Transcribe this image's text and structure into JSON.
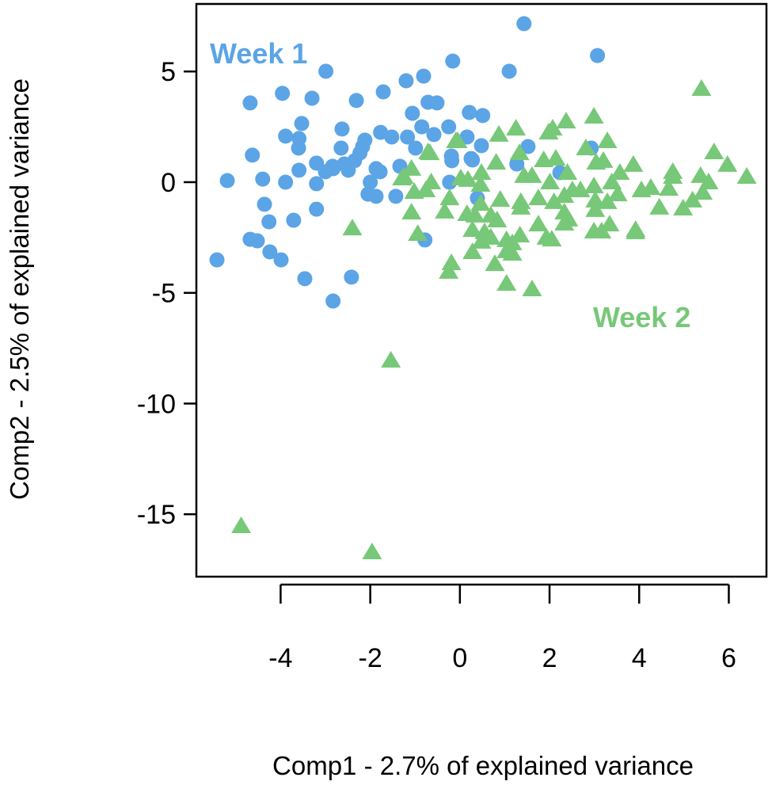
{
  "chart_data": {
    "type": "scatter",
    "title": "",
    "xlabel": "Comp1 - 2.7% of explained variance",
    "ylabel": "Comp2 - 2.5% of explained variance",
    "xlim": [
      -5.88,
      6.84
    ],
    "ylim": [
      -17.82,
      8.05
    ],
    "xticks": [
      -4,
      -2,
      0,
      2,
      4,
      6
    ],
    "yticks": [
      5,
      0,
      -5,
      -10,
      -15
    ],
    "xtick_labels": [
      "-4",
      "-2",
      "0",
      "2",
      "4",
      "6"
    ],
    "ytick_labels": [
      "5",
      "0",
      "-5",
      "-10",
      "-15"
    ],
    "grid": false,
    "legend": "none",
    "annotations": [
      {
        "text": "Week 1",
        "x": -4.49,
        "y": 5.83,
        "color": "#5ba4e6"
      },
      {
        "text": "Week 2",
        "x": 4.06,
        "y": -6.08,
        "color": "#77c878"
      }
    ],
    "series": [
      {
        "name": "Week 1",
        "marker": "circle",
        "color": "#5ba4e6",
        "points": [
          [
            1.43,
            7.16
          ],
          [
            3.07,
            5.72
          ],
          [
            -0.16,
            5.47
          ],
          [
            1.1,
            5.01
          ],
          [
            -2.99,
            5.01
          ],
          [
            -1.2,
            4.58
          ],
          [
            -0.81,
            4.79
          ],
          [
            -1.71,
            4.08
          ],
          [
            -2.31,
            3.69
          ],
          [
            -3.3,
            3.79
          ],
          [
            -3.96,
            4.01
          ],
          [
            -4.68,
            3.58
          ],
          [
            -0.71,
            3.61
          ],
          [
            -0.51,
            3.58
          ],
          [
            -1.06,
            3.11
          ],
          [
            0.21,
            3.15
          ],
          [
            0.51,
            3.01
          ],
          [
            -3.53,
            2.65
          ],
          [
            -2.63,
            2.4
          ],
          [
            -0.85,
            2.5
          ],
          [
            -0.25,
            2.5
          ],
          [
            -3.89,
            2.08
          ],
          [
            -3.59,
            1.97
          ],
          [
            -3.6,
            1.54
          ],
          [
            -2.12,
            1.9
          ],
          [
            -1.77,
            2.25
          ],
          [
            -1.52,
            2.04
          ],
          [
            -1.17,
            2.04
          ],
          [
            -0.58,
            2.15
          ],
          [
            0.16,
            2.04
          ],
          [
            0.48,
            1.65
          ],
          [
            -4.63,
            1.22
          ],
          [
            -2.65,
            1.54
          ],
          [
            -2.23,
            1.32
          ],
          [
            -0.99,
            1.54
          ],
          [
            1.52,
            1.61
          ],
          [
            2.93,
            1.54
          ],
          [
            0.25,
            1.07
          ],
          [
            -0.18,
            0.97
          ],
          [
            -0.19,
            1.18
          ],
          [
            -3.2,
            0.86
          ],
          [
            -2.58,
            0.82
          ],
          [
            -2.35,
            0.97
          ],
          [
            -2.83,
            0.61
          ],
          [
            -3.0,
            0.47
          ],
          [
            -1.87,
            0.61
          ],
          [
            -1.34,
            0.72
          ],
          [
            1.27,
            0.82
          ],
          [
            0.28,
            1.0
          ],
          [
            -5.19,
            0.07
          ],
          [
            -4.4,
            0.14
          ],
          [
            -3.89,
            0.0
          ],
          [
            -3.59,
            0.54
          ],
          [
            -3.2,
            -0.07
          ],
          [
            -2.0,
            0.0
          ],
          [
            -0.23,
            0.0
          ],
          [
            2.23,
            0.43
          ],
          [
            -1.78,
            0.47
          ],
          [
            -2.05,
            -0.54
          ],
          [
            -1.87,
            -0.64
          ],
          [
            -1.43,
            -0.64
          ],
          [
            0.39,
            -0.72
          ],
          [
            -4.36,
            -1.0
          ],
          [
            -3.2,
            -1.22
          ],
          [
            -4.26,
            -1.79
          ],
          [
            -3.71,
            -1.72
          ],
          [
            -4.68,
            -2.58
          ],
          [
            -4.52,
            -2.65
          ],
          [
            -4.24,
            -3.15
          ],
          [
            -3.99,
            -3.51
          ],
          [
            -5.42,
            -3.51
          ],
          [
            -3.46,
            -4.36
          ],
          [
            -2.42,
            -4.29
          ],
          [
            -2.83,
            -5.37
          ],
          [
            -0.78,
            -2.61
          ],
          [
            -2.84,
            0.72
          ],
          [
            -2.49,
            0.54
          ],
          [
            -2.17,
            1.61
          ]
        ]
      },
      {
        "name": "Week 2",
        "marker": "triangle",
        "color": "#77c878",
        "points": [
          [
            5.39,
            4.22
          ],
          [
            2.99,
            2.97
          ],
          [
            1.25,
            2.43
          ],
          [
            0.87,
            2.15
          ],
          [
            2.37,
            2.75
          ],
          [
            2.07,
            2.43
          ],
          [
            1.98,
            2.25
          ],
          [
            3.29,
            1.86
          ],
          [
            2.81,
            1.54
          ],
          [
            -0.05,
            1.86
          ],
          [
            -0.67,
            1.32
          ],
          [
            1.33,
            1.32
          ],
          [
            0.81,
            0.89
          ],
          [
            1.87,
            1.0
          ],
          [
            2.14,
            1.07
          ],
          [
            3.04,
            0.89
          ],
          [
            3.2,
            0.97
          ],
          [
            3.87,
            0.79
          ],
          [
            5.67,
            1.36
          ],
          [
            5.97,
            0.79
          ],
          [
            6.4,
            0.25
          ],
          [
            4.75,
            0.47
          ],
          [
            4.75,
            0.25
          ],
          [
            5.37,
            0.29
          ],
          [
            5.55,
            0.0
          ],
          [
            3.57,
            0.43
          ],
          [
            3.39,
            0.0
          ],
          [
            4.05,
            -0.36
          ],
          [
            4.26,
            -0.25
          ],
          [
            4.66,
            -0.29
          ],
          [
            5.42,
            -0.47
          ],
          [
            5.19,
            -0.82
          ],
          [
            4.98,
            -1.18
          ],
          [
            4.45,
            -1.14
          ],
          [
            -1.08,
            0.61
          ],
          [
            -1.25,
            0.25
          ],
          [
            -0.64,
            0.0
          ],
          [
            -1.02,
            -0.43
          ],
          [
            -0.76,
            -0.36
          ],
          [
            0.02,
            0.18
          ],
          [
            0.48,
            0.43
          ],
          [
            0.46,
            -0.11
          ],
          [
            1.43,
            0.29
          ],
          [
            1.61,
            0.29
          ],
          [
            2.01,
            0.0
          ],
          [
            2.4,
            0.43
          ],
          [
            2.51,
            -0.36
          ],
          [
            2.69,
            -0.36
          ],
          [
            2.99,
            -0.18
          ],
          [
            2.33,
            -0.61
          ],
          [
            3.02,
            -0.82
          ],
          [
            3.29,
            -0.89
          ],
          [
            3.52,
            -0.54
          ],
          [
            -0.23,
            -0.72
          ],
          [
            0.9,
            -0.79
          ],
          [
            1.36,
            -0.89
          ],
          [
            1.36,
            -1.14
          ],
          [
            1.75,
            -0.72
          ],
          [
            2.1,
            -0.89
          ],
          [
            0.46,
            -0.97
          ],
          [
            -1.08,
            -1.36
          ],
          [
            -0.34,
            -1.32
          ],
          [
            0.16,
            -1.43
          ],
          [
            0.34,
            -1.5
          ],
          [
            0.69,
            -1.5
          ],
          [
            0.83,
            -1.72
          ],
          [
            3.02,
            -1.25
          ],
          [
            2.33,
            -1.36
          ],
          [
            2.42,
            -1.68
          ],
          [
            2.33,
            -1.86
          ],
          [
            1.75,
            -1.9
          ],
          [
            3.34,
            -1.9
          ],
          [
            2.99,
            -2.22
          ],
          [
            3.16,
            -2.22
          ],
          [
            3.92,
            -2.15
          ],
          [
            3.92,
            -2.25
          ],
          [
            0.28,
            -2.15
          ],
          [
            0.55,
            -2.25
          ],
          [
            0.69,
            -2.5
          ],
          [
            0.48,
            -2.68
          ],
          [
            1.34,
            -2.4
          ],
          [
            1.04,
            -2.61
          ],
          [
            1.17,
            -2.75
          ],
          [
            1.93,
            -2.5
          ],
          [
            2.05,
            -2.58
          ],
          [
            -0.94,
            -2.33
          ],
          [
            -0.19,
            -3.65
          ],
          [
            -0.25,
            -4.04
          ],
          [
            0.28,
            -3.15
          ],
          [
            0.78,
            -3.69
          ],
          [
            1.04,
            -3.11
          ],
          [
            1.17,
            -3.22
          ],
          [
            1.04,
            -4.58
          ],
          [
            1.61,
            -4.83
          ],
          [
            -2.4,
            -2.08
          ],
          [
            -0.09,
            1.86
          ],
          [
            -0.71,
            1.36
          ],
          [
            -1.29,
            0.18
          ],
          [
            0.18,
            0.11
          ],
          [
            -1.54,
            -8.05
          ],
          [
            -4.88,
            -15.53
          ],
          [
            -1.96,
            -16.71
          ]
        ]
      }
    ]
  }
}
